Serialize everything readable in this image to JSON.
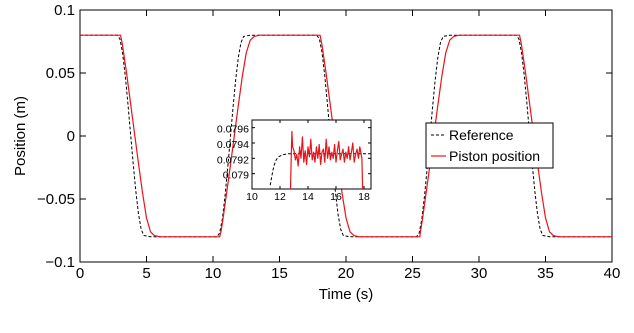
{
  "chart_data": {
    "type": "line",
    "xlabel": "Time (s)",
    "ylabel": "Position (m)",
    "xlim": [
      0,
      40
    ],
    "ylim": [
      -0.1,
      0.1
    ],
    "xticks": [
      0,
      5,
      10,
      15,
      20,
      25,
      30,
      35,
      40
    ],
    "xtick_labels": [
      "0",
      "5",
      "10",
      "15",
      "20",
      "25",
      "30",
      "35",
      "40"
    ],
    "yticks": [
      -0.1,
      -0.05,
      0,
      0.05,
      0.1
    ],
    "ytick_labels": [
      "−0.1",
      "−0.05",
      "0",
      "0.05",
      "0.1"
    ],
    "grid": false,
    "legend_position": "right-center",
    "series": [
      {
        "name": "Reference",
        "style": "dashed",
        "color": "#000000",
        "x": [
          0,
          2.8,
          3.0,
          3.2,
          3.4,
          3.6,
          3.8,
          4.0,
          4.2,
          4.4,
          4.6,
          4.8,
          5.3,
          10.3,
          10.5,
          10.7,
          10.9,
          11.1,
          11.3,
          11.5,
          11.7,
          11.9,
          12.1,
          12.3,
          12.8,
          17.8,
          18.0,
          18.2,
          18.4,
          18.6,
          18.8,
          19.0,
          19.2,
          19.4,
          19.6,
          19.8,
          20.3,
          25.3,
          25.5,
          25.7,
          25.9,
          26.1,
          26.3,
          26.5,
          26.7,
          26.9,
          27.1,
          27.3,
          27.8,
          32.8,
          33.0,
          33.2,
          33.4,
          33.6,
          33.8,
          34.0,
          34.2,
          34.4,
          34.6,
          34.8,
          35.3,
          40
        ],
        "y": [
          0.08,
          0.08,
          0.077,
          0.066,
          0.048,
          0.026,
          0.002,
          -0.022,
          -0.044,
          -0.062,
          -0.074,
          -0.079,
          -0.08,
          -0.08,
          -0.077,
          -0.066,
          -0.048,
          -0.026,
          -0.002,
          0.022,
          0.044,
          0.062,
          0.074,
          0.079,
          0.08,
          0.08,
          0.077,
          0.066,
          0.048,
          0.026,
          0.002,
          -0.022,
          -0.044,
          -0.062,
          -0.074,
          -0.079,
          -0.08,
          -0.08,
          -0.077,
          -0.066,
          -0.048,
          -0.026,
          -0.002,
          0.022,
          0.044,
          0.062,
          0.074,
          0.079,
          0.08,
          0.08,
          0.077,
          0.066,
          0.048,
          0.026,
          0.002,
          -0.022,
          -0.044,
          -0.062,
          -0.074,
          -0.079,
          -0.08,
          -0.08
        ]
      },
      {
        "name": "Piston position",
        "style": "solid",
        "color": "#e8141b",
        "x": [
          0,
          3.05,
          3.2,
          3.5,
          3.8,
          4.1,
          4.4,
          4.7,
          5.0,
          5.3,
          5.6,
          6.0,
          10.5,
          10.6,
          10.75,
          11.0,
          11.3,
          11.6,
          11.9,
          12.2,
          12.5,
          12.8,
          13.1,
          13.5,
          18.05,
          18.2,
          18.5,
          18.8,
          19.1,
          19.4,
          19.7,
          20.0,
          20.3,
          20.6,
          21.0,
          25.55,
          25.6,
          25.75,
          26.0,
          26.3,
          26.6,
          26.9,
          27.2,
          27.5,
          27.8,
          28.1,
          28.5,
          33.05,
          33.2,
          33.5,
          33.8,
          34.1,
          34.4,
          34.7,
          35.0,
          35.3,
          35.6,
          36.0,
          40
        ],
        "y": [
          0.08,
          0.08,
          0.072,
          0.05,
          0.026,
          0.002,
          -0.022,
          -0.045,
          -0.065,
          -0.076,
          -0.079,
          -0.08,
          -0.08,
          -0.076,
          -0.066,
          -0.047,
          -0.024,
          0.0,
          0.024,
          0.047,
          0.066,
          0.076,
          0.079,
          0.08,
          0.08,
          0.072,
          0.05,
          0.026,
          0.002,
          -0.022,
          -0.045,
          -0.065,
          -0.076,
          -0.079,
          -0.08,
          -0.08,
          -0.076,
          -0.066,
          -0.047,
          -0.024,
          0.0,
          0.024,
          0.047,
          0.066,
          0.076,
          0.079,
          0.08,
          0.08,
          0.072,
          0.05,
          0.026,
          0.002,
          -0.022,
          -0.045,
          -0.065,
          -0.076,
          -0.079,
          -0.08,
          -0.08
        ]
      }
    ],
    "inset": {
      "type": "line",
      "xlim": [
        10,
        18.5
      ],
      "ylim": [
        0.0788,
        0.0797
      ],
      "xticks": [
        10,
        12,
        14,
        16,
        18
      ],
      "xtick_labels": [
        "10",
        "12",
        "14",
        "16",
        "18"
      ],
      "yticks": [
        0.079,
        0.0792,
        0.0794,
        0.0796
      ],
      "ytick_labels": [
        "0.079",
        "0.0792",
        "0.0794",
        "0.0796"
      ],
      "series": [
        {
          "name": "Reference",
          "style": "dashed",
          "color": "#000000",
          "x": [
            11.3,
            11.4,
            11.5,
            11.6,
            11.7,
            11.8,
            11.9,
            12.0,
            12.1,
            12.3,
            12.6,
            18.5
          ],
          "y": [
            0.07885,
            0.07895,
            0.07905,
            0.07912,
            0.07917,
            0.0792,
            0.07922,
            0.07923,
            0.07924,
            0.07925,
            0.07926,
            0.07926
          ]
        },
        {
          "name": "Piston position",
          "style": "solid",
          "color": "#e8141b",
          "x": [
            12.75,
            12.8,
            12.85,
            12.9,
            13.0,
            13.1,
            13.2,
            13.3,
            13.4,
            13.5,
            13.6,
            13.7,
            13.8,
            13.9,
            14.0,
            14.1,
            14.2,
            14.3,
            14.4,
            14.5,
            14.6,
            14.7,
            14.8,
            14.9,
            15.0,
            15.1,
            15.2,
            15.3,
            15.4,
            15.5,
            15.6,
            15.7,
            15.8,
            15.9,
            16.0,
            16.1,
            16.2,
            16.3,
            16.4,
            16.5,
            16.6,
            16.7,
            16.8,
            16.9,
            17.0,
            17.1,
            17.2,
            17.3,
            17.4,
            17.5,
            17.6,
            17.7,
            17.8,
            17.85,
            17.9
          ],
          "y": [
            0.0788,
            0.0792,
            0.07955,
            0.07935,
            0.0793,
            0.07918,
            0.07925,
            0.0791,
            0.07935,
            0.0792,
            0.07948,
            0.07915,
            0.0793,
            0.07912,
            0.07935,
            0.07922,
            0.07945,
            0.07918,
            0.07928,
            0.07915,
            0.07935,
            0.0792,
            0.07938,
            0.07912,
            0.07928,
            0.07932,
            0.07915,
            0.07945,
            0.0792,
            0.07935,
            0.07918,
            0.07928,
            0.0792,
            0.07938,
            0.07915,
            0.0793,
            0.07942,
            0.07918,
            0.07925,
            0.07932,
            0.07915,
            0.07928,
            0.0792,
            0.07935,
            0.07918,
            0.07928,
            0.0794,
            0.07915,
            0.07925,
            0.07932,
            0.0792,
            0.07935,
            0.07925,
            0.0792,
            0.0788
          ]
        }
      ]
    }
  }
}
